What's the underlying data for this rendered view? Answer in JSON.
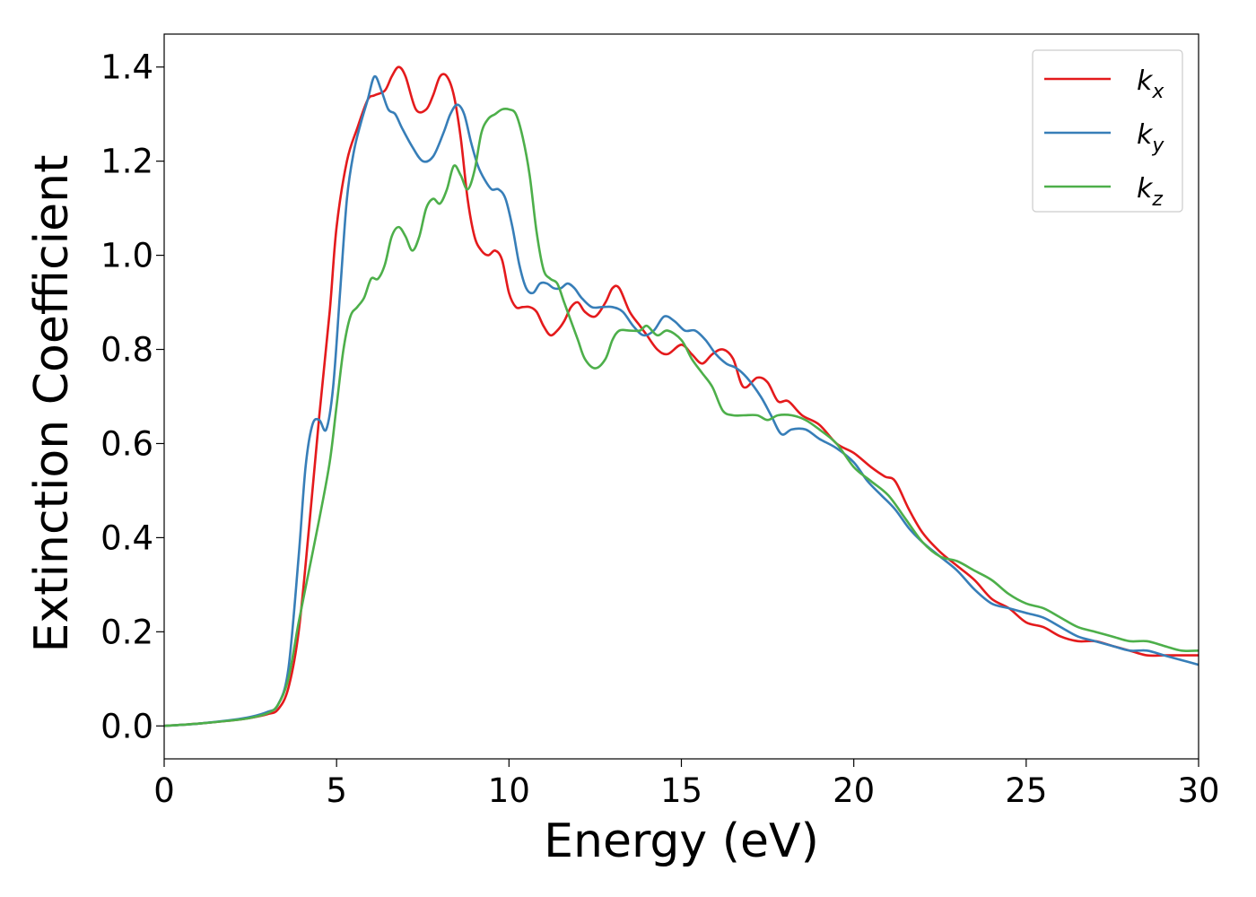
{
  "chart_data": {
    "type": "line",
    "xlabel": "Energy (eV)",
    "ylabel": "Extinction Coefficient",
    "xlim": [
      0,
      30
    ],
    "ylim": [
      -0.07,
      1.47
    ],
    "xticks": [
      0,
      5,
      10,
      15,
      20,
      25,
      30
    ],
    "xtick_labels": [
      "0",
      "5",
      "10",
      "15",
      "20",
      "25",
      "30"
    ],
    "yticks": [
      0.0,
      0.2,
      0.4,
      0.6,
      0.8,
      1.0,
      1.2,
      1.4
    ],
    "ytick_labels": [
      "0.0",
      "0.2",
      "0.4",
      "0.6",
      "0.8",
      "1.0",
      "1.2",
      "1.4"
    ],
    "grid": false,
    "legend_position": "top-right",
    "series": [
      {
        "name": "k",
        "subscript": "x",
        "color": "#e41a1c",
        "x": [
          0,
          1,
          2,
          2.5,
          3,
          3.3,
          3.6,
          3.9,
          4.2,
          4.5,
          4.8,
          5.0,
          5.3,
          5.6,
          5.9,
          6.1,
          6.4,
          6.6,
          6.8,
          7.0,
          7.3,
          7.6,
          7.8,
          8.0,
          8.2,
          8.4,
          8.6,
          8.8,
          9.0,
          9.2,
          9.4,
          9.6,
          9.8,
          10.0,
          10.2,
          10.4,
          10.6,
          10.8,
          11.0,
          11.2,
          11.4,
          11.6,
          11.8,
          12.0,
          12.2,
          12.5,
          12.8,
          13.0,
          13.2,
          13.5,
          13.8,
          14.0,
          14.3,
          14.6,
          15.0,
          15.3,
          15.6,
          15.9,
          16.2,
          16.5,
          16.8,
          17.2,
          17.5,
          17.8,
          18.1,
          18.5,
          19.0,
          19.5,
          20.0,
          20.5,
          20.9,
          21.2,
          21.6,
          22.0,
          22.5,
          23.0,
          23.5,
          24.0,
          24.5,
          25.0,
          25.5,
          26.0,
          26.5,
          27.0,
          27.5,
          28.0,
          28.5,
          29.0,
          29.5,
          30.0
        ],
        "y": [
          0.0,
          0.005,
          0.012,
          0.017,
          0.025,
          0.035,
          0.08,
          0.2,
          0.42,
          0.66,
          0.88,
          1.06,
          1.2,
          1.27,
          1.33,
          1.34,
          1.35,
          1.38,
          1.4,
          1.38,
          1.31,
          1.31,
          1.34,
          1.38,
          1.38,
          1.34,
          1.25,
          1.12,
          1.04,
          1.01,
          1.0,
          1.01,
          0.99,
          0.92,
          0.89,
          0.89,
          0.89,
          0.88,
          0.85,
          0.83,
          0.84,
          0.86,
          0.89,
          0.9,
          0.88,
          0.87,
          0.9,
          0.93,
          0.93,
          0.88,
          0.85,
          0.83,
          0.8,
          0.79,
          0.81,
          0.79,
          0.77,
          0.79,
          0.8,
          0.78,
          0.72,
          0.74,
          0.73,
          0.69,
          0.69,
          0.66,
          0.64,
          0.6,
          0.58,
          0.55,
          0.53,
          0.52,
          0.46,
          0.41,
          0.37,
          0.34,
          0.31,
          0.27,
          0.25,
          0.22,
          0.21,
          0.19,
          0.18,
          0.18,
          0.17,
          0.16,
          0.15,
          0.15,
          0.15,
          0.15
        ]
      },
      {
        "name": "k",
        "subscript": "y",
        "color": "#377eb8",
        "x": [
          0,
          1,
          2,
          2.5,
          3,
          3.3,
          3.6,
          3.9,
          4.1,
          4.3,
          4.5,
          4.7,
          4.9,
          5.1,
          5.3,
          5.5,
          5.7,
          5.9,
          6.1,
          6.3,
          6.5,
          6.7,
          6.9,
          7.2,
          7.5,
          7.8,
          8.1,
          8.3,
          8.5,
          8.7,
          8.9,
          9.1,
          9.3,
          9.5,
          9.7,
          9.9,
          10.1,
          10.3,
          10.5,
          10.7,
          10.9,
          11.1,
          11.3,
          11.5,
          11.7,
          11.9,
          12.1,
          12.4,
          12.7,
          13.0,
          13.3,
          13.6,
          13.9,
          14.2,
          14.5,
          14.8,
          15.1,
          15.4,
          15.7,
          16.0,
          16.3,
          16.6,
          16.9,
          17.3,
          17.6,
          17.9,
          18.2,
          18.6,
          19.0,
          19.5,
          20.0,
          20.4,
          20.8,
          21.2,
          21.6,
          22.0,
          22.5,
          23.0,
          23.5,
          24.0,
          24.5,
          25.0,
          25.5,
          26.0,
          26.5,
          27.0,
          27.5,
          28.0,
          28.5,
          29.0,
          29.5,
          30.0
        ],
        "y": [
          0.0,
          0.005,
          0.013,
          0.019,
          0.03,
          0.045,
          0.12,
          0.36,
          0.55,
          0.64,
          0.65,
          0.63,
          0.72,
          0.92,
          1.12,
          1.22,
          1.28,
          1.33,
          1.38,
          1.35,
          1.31,
          1.3,
          1.27,
          1.23,
          1.2,
          1.21,
          1.26,
          1.3,
          1.32,
          1.3,
          1.24,
          1.19,
          1.16,
          1.14,
          1.14,
          1.12,
          1.06,
          0.98,
          0.93,
          0.92,
          0.94,
          0.94,
          0.93,
          0.93,
          0.94,
          0.93,
          0.91,
          0.89,
          0.89,
          0.89,
          0.88,
          0.85,
          0.83,
          0.84,
          0.87,
          0.86,
          0.84,
          0.84,
          0.82,
          0.79,
          0.77,
          0.76,
          0.74,
          0.7,
          0.66,
          0.62,
          0.63,
          0.63,
          0.61,
          0.59,
          0.56,
          0.52,
          0.49,
          0.46,
          0.42,
          0.39,
          0.36,
          0.33,
          0.29,
          0.26,
          0.25,
          0.24,
          0.23,
          0.21,
          0.19,
          0.18,
          0.17,
          0.16,
          0.16,
          0.15,
          0.14,
          0.13
        ]
      },
      {
        "name": "k",
        "subscript": "z",
        "color": "#4daf4a",
        "x": [
          0,
          1,
          2,
          2.5,
          3,
          3.3,
          3.6,
          3.9,
          4.2,
          4.5,
          4.8,
          5.0,
          5.2,
          5.4,
          5.6,
          5.8,
          6.0,
          6.2,
          6.4,
          6.6,
          6.8,
          7.0,
          7.2,
          7.4,
          7.6,
          7.8,
          8.0,
          8.2,
          8.4,
          8.6,
          8.8,
          9.0,
          9.2,
          9.4,
          9.6,
          9.8,
          10.0,
          10.2,
          10.4,
          10.6,
          10.8,
          11.0,
          11.2,
          11.4,
          11.6,
          11.8,
          12.0,
          12.2,
          12.5,
          12.8,
          13.0,
          13.2,
          13.5,
          13.8,
          14.0,
          14.3,
          14.6,
          15.0,
          15.3,
          15.6,
          15.9,
          16.2,
          16.5,
          16.8,
          17.2,
          17.5,
          17.8,
          18.2,
          18.6,
          19.0,
          19.5,
          20.0,
          20.5,
          21.0,
          21.5,
          22.0,
          22.5,
          23.0,
          23.5,
          24.0,
          24.5,
          25.0,
          25.5,
          26.0,
          26.5,
          27.0,
          27.5,
          28.0,
          28.5,
          29.0,
          29.5,
          30.0
        ],
        "y": [
          0.0,
          0.005,
          0.012,
          0.017,
          0.027,
          0.045,
          0.1,
          0.22,
          0.33,
          0.44,
          0.56,
          0.68,
          0.8,
          0.87,
          0.89,
          0.91,
          0.95,
          0.95,
          0.98,
          1.04,
          1.06,
          1.04,
          1.01,
          1.04,
          1.1,
          1.12,
          1.11,
          1.14,
          1.19,
          1.17,
          1.14,
          1.18,
          1.26,
          1.29,
          1.3,
          1.31,
          1.31,
          1.3,
          1.25,
          1.17,
          1.05,
          0.97,
          0.95,
          0.94,
          0.9,
          0.86,
          0.82,
          0.78,
          0.76,
          0.78,
          0.82,
          0.84,
          0.84,
          0.84,
          0.85,
          0.83,
          0.84,
          0.82,
          0.78,
          0.75,
          0.72,
          0.67,
          0.66,
          0.66,
          0.66,
          0.65,
          0.66,
          0.66,
          0.65,
          0.63,
          0.6,
          0.55,
          0.52,
          0.49,
          0.44,
          0.39,
          0.36,
          0.35,
          0.33,
          0.31,
          0.28,
          0.26,
          0.25,
          0.23,
          0.21,
          0.2,
          0.19,
          0.18,
          0.18,
          0.17,
          0.16,
          0.16
        ]
      }
    ]
  }
}
